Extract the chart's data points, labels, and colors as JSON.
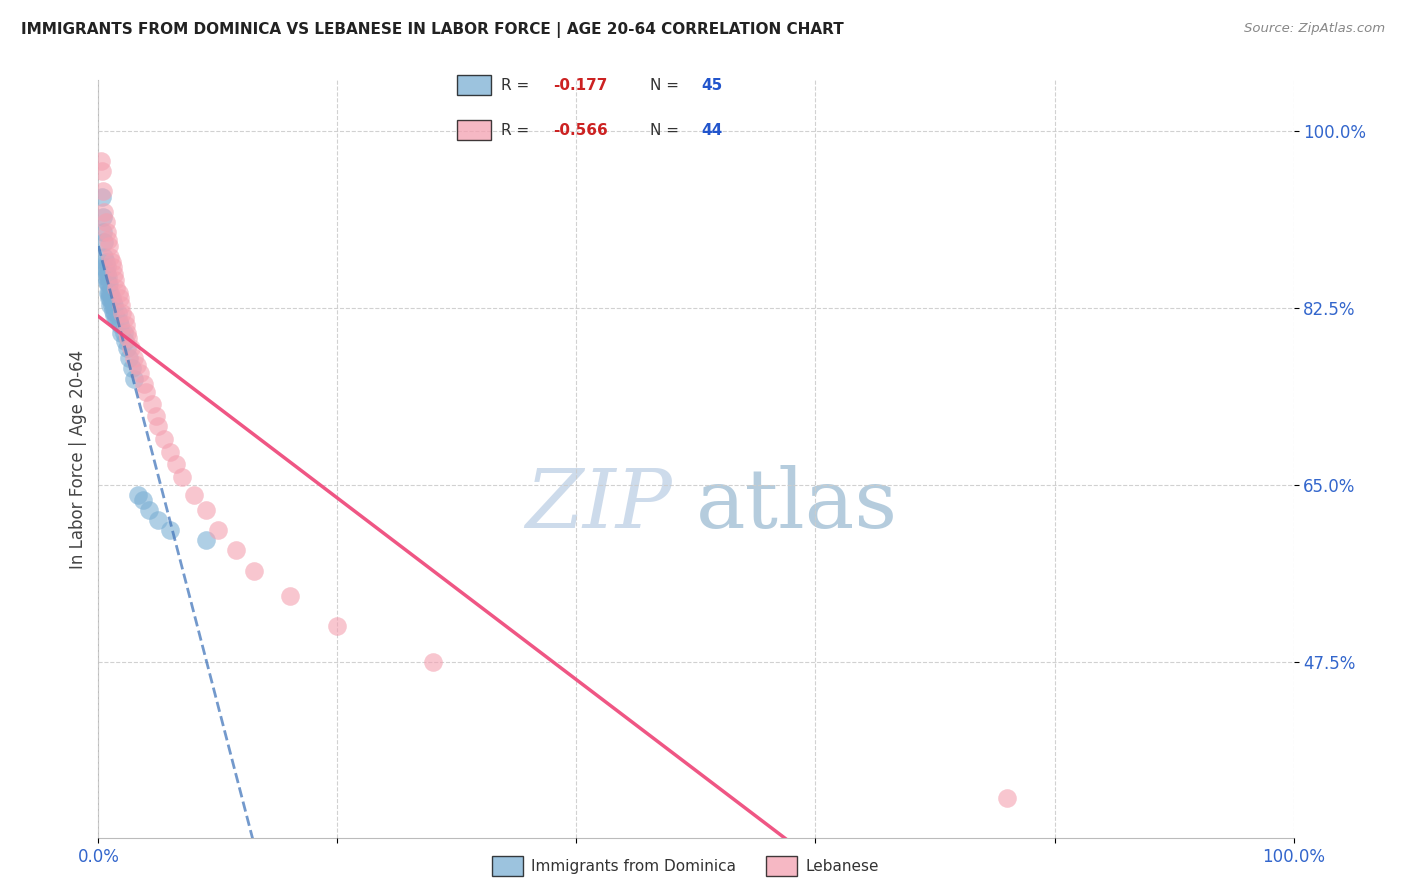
{
  "title": "IMMIGRANTS FROM DOMINICA VS LEBANESE IN LABOR FORCE | AGE 20-64 CORRELATION CHART",
  "source": "Source: ZipAtlas.com",
  "ylabel": "In Labor Force | Age 20-64",
  "xlim": [
    0.0,
    1.0
  ],
  "ylim": [
    0.3,
    1.05
  ],
  "yticks": [
    0.475,
    0.65,
    0.825,
    1.0
  ],
  "ytick_labels": [
    "47.5%",
    "65.0%",
    "82.5%",
    "100.0%"
  ],
  "legend_R1": "-0.177",
  "legend_N1": "45",
  "legend_R2": "-0.566",
  "legend_N2": "44",
  "label1": "Immigrants from Dominica",
  "label2": "Lebanese",
  "color1": "#7BAFD4",
  "color2": "#F4A0B0",
  "line_color1": "#4477BB",
  "line_color2": "#EE4477",
  "watermark_zip": "ZIP",
  "watermark_atlas": "atlas",
  "watermark_color_zip": "#C5D5E8",
  "watermark_color_atlas": "#A8C4D8",
  "dominica_x": [
    0.003,
    0.004,
    0.004,
    0.005,
    0.005,
    0.005,
    0.006,
    0.006,
    0.006,
    0.007,
    0.007,
    0.007,
    0.008,
    0.008,
    0.008,
    0.009,
    0.009,
    0.009,
    0.01,
    0.01,
    0.01,
    0.011,
    0.011,
    0.012,
    0.012,
    0.013,
    0.013,
    0.014,
    0.015,
    0.016,
    0.017,
    0.018,
    0.019,
    0.021,
    0.022,
    0.024,
    0.026,
    0.028,
    0.03,
    0.033,
    0.037,
    0.042,
    0.05,
    0.06,
    0.09
  ],
  "dominica_y": [
    0.935,
    0.915,
    0.9,
    0.89,
    0.875,
    0.865,
    0.87,
    0.862,
    0.855,
    0.865,
    0.858,
    0.85,
    0.855,
    0.848,
    0.84,
    0.848,
    0.84,
    0.835,
    0.84,
    0.835,
    0.828,
    0.835,
    0.828,
    0.83,
    0.822,
    0.828,
    0.818,
    0.82,
    0.815,
    0.82,
    0.812,
    0.808,
    0.8,
    0.8,
    0.792,
    0.785,
    0.775,
    0.765,
    0.755,
    0.64,
    0.635,
    0.625,
    0.615,
    0.605,
    0.595
  ],
  "lebanese_x": [
    0.002,
    0.003,
    0.004,
    0.005,
    0.006,
    0.007,
    0.008,
    0.009,
    0.01,
    0.011,
    0.012,
    0.013,
    0.014,
    0.015,
    0.017,
    0.018,
    0.019,
    0.02,
    0.022,
    0.023,
    0.024,
    0.025,
    0.027,
    0.03,
    0.032,
    0.035,
    0.038,
    0.04,
    0.045,
    0.048,
    0.05,
    0.055,
    0.06,
    0.065,
    0.07,
    0.08,
    0.09,
    0.1,
    0.115,
    0.13,
    0.16,
    0.2,
    0.28,
    0.76
  ],
  "lebanese_y": [
    0.97,
    0.96,
    0.94,
    0.92,
    0.91,
    0.9,
    0.892,
    0.886,
    0.875,
    0.87,
    0.865,
    0.858,
    0.852,
    0.845,
    0.84,
    0.835,
    0.828,
    0.82,
    0.815,
    0.808,
    0.8,
    0.795,
    0.785,
    0.775,
    0.768,
    0.76,
    0.75,
    0.742,
    0.73,
    0.718,
    0.708,
    0.695,
    0.682,
    0.67,
    0.658,
    0.64,
    0.625,
    0.605,
    0.585,
    0.565,
    0.54,
    0.51,
    0.475,
    0.34
  ]
}
